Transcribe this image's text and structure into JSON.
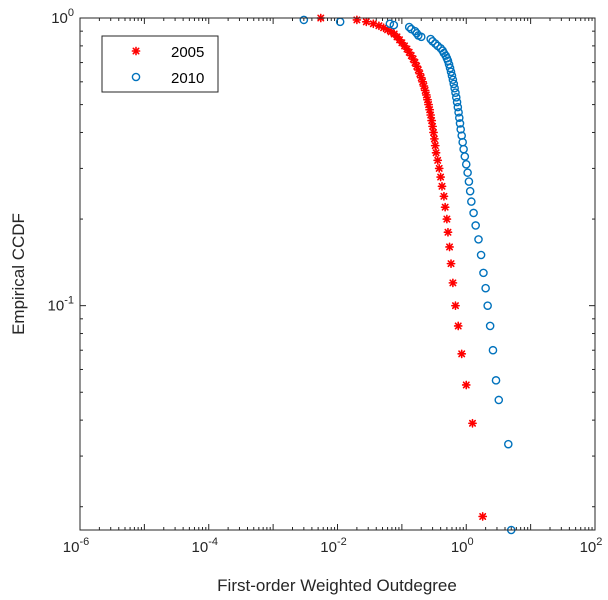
{
  "chart_data": {
    "type": "scatter",
    "xscale": "log",
    "yscale": "log",
    "xlim": [
      1e-06,
      100
    ],
    "ylim": [
      0.0166,
      1
    ],
    "xlabel": "First-order Weighted Outdegree",
    "ylabel": "Empirical CCDF",
    "x_ticks": [
      {
        "value": 1e-06,
        "base": "10",
        "exp": "-6"
      },
      {
        "value": 0.0001,
        "base": "10",
        "exp": "-4"
      },
      {
        "value": 0.01,
        "base": "10",
        "exp": "-2"
      },
      {
        "value": 1,
        "base": "10",
        "exp": "0"
      },
      {
        "value": 100,
        "base": "10",
        "exp": "2"
      }
    ],
    "y_ticks": [
      {
        "value": 0.1,
        "base": "10",
        "exp": "-1"
      },
      {
        "value": 1,
        "base": "10",
        "exp": "0"
      }
    ],
    "grid": false,
    "legend_position": "top-left",
    "series": [
      {
        "name": "2005",
        "marker": "asterisk",
        "color": "#ff0000",
        "points": [
          [
            0.0055,
            1.0
          ],
          [
            0.02,
            0.985
          ],
          [
            0.028,
            0.97
          ],
          [
            0.036,
            0.955
          ],
          [
            0.044,
            0.94
          ],
          [
            0.052,
            0.925
          ],
          [
            0.06,
            0.91
          ],
          [
            0.068,
            0.895
          ],
          [
            0.076,
            0.88
          ],
          [
            0.084,
            0.86
          ],
          [
            0.092,
            0.84
          ],
          [
            0.1,
            0.82
          ],
          [
            0.11,
            0.8
          ],
          [
            0.12,
            0.78
          ],
          [
            0.13,
            0.76
          ],
          [
            0.14,
            0.74
          ],
          [
            0.15,
            0.72
          ],
          [
            0.16,
            0.7
          ],
          [
            0.17,
            0.68
          ],
          [
            0.18,
            0.66
          ],
          [
            0.19,
            0.64
          ],
          [
            0.2,
            0.62
          ],
          [
            0.21,
            0.6
          ],
          [
            0.22,
            0.58
          ],
          [
            0.23,
            0.56
          ],
          [
            0.24,
            0.54
          ],
          [
            0.25,
            0.52
          ],
          [
            0.26,
            0.5
          ],
          [
            0.27,
            0.48
          ],
          [
            0.28,
            0.46
          ],
          [
            0.29,
            0.44
          ],
          [
            0.3,
            0.42
          ],
          [
            0.31,
            0.4
          ],
          [
            0.32,
            0.38
          ],
          [
            0.33,
            0.36
          ],
          [
            0.34,
            0.34
          ],
          [
            0.36,
            0.32
          ],
          [
            0.38,
            0.3
          ],
          [
            0.4,
            0.28
          ],
          [
            0.42,
            0.26
          ],
          [
            0.45,
            0.24
          ],
          [
            0.47,
            0.22
          ],
          [
            0.5,
            0.2
          ],
          [
            0.52,
            0.18
          ],
          [
            0.55,
            0.16
          ],
          [
            0.58,
            0.14
          ],
          [
            0.62,
            0.12
          ],
          [
            0.68,
            0.1
          ],
          [
            0.75,
            0.085
          ],
          [
            0.85,
            0.068
          ],
          [
            1.0,
            0.053
          ],
          [
            1.25,
            0.039
          ],
          [
            1.8,
            0.0185
          ]
        ]
      },
      {
        "name": "2010",
        "marker": "circle",
        "color": "#0072bd",
        "points": [
          [
            0.003,
            0.985
          ],
          [
            0.011,
            0.97
          ],
          [
            0.065,
            0.955
          ],
          [
            0.075,
            0.945
          ],
          [
            0.13,
            0.93
          ],
          [
            0.14,
            0.915
          ],
          [
            0.16,
            0.9
          ],
          [
            0.17,
            0.885
          ],
          [
            0.18,
            0.87
          ],
          [
            0.2,
            0.86
          ],
          [
            0.28,
            0.845
          ],
          [
            0.3,
            0.83
          ],
          [
            0.33,
            0.815
          ],
          [
            0.36,
            0.8
          ],
          [
            0.4,
            0.785
          ],
          [
            0.43,
            0.77
          ],
          [
            0.45,
            0.755
          ],
          [
            0.48,
            0.74
          ],
          [
            0.5,
            0.725
          ],
          [
            0.52,
            0.71
          ],
          [
            0.54,
            0.69
          ],
          [
            0.56,
            0.67
          ],
          [
            0.58,
            0.65
          ],
          [
            0.6,
            0.63
          ],
          [
            0.62,
            0.61
          ],
          [
            0.64,
            0.59
          ],
          [
            0.66,
            0.57
          ],
          [
            0.68,
            0.55
          ],
          [
            0.7,
            0.53
          ],
          [
            0.72,
            0.51
          ],
          [
            0.74,
            0.49
          ],
          [
            0.76,
            0.47
          ],
          [
            0.78,
            0.45
          ],
          [
            0.8,
            0.43
          ],
          [
            0.82,
            0.41
          ],
          [
            0.85,
            0.39
          ],
          [
            0.88,
            0.37
          ],
          [
            0.91,
            0.35
          ],
          [
            0.95,
            0.33
          ],
          [
            1.0,
            0.31
          ],
          [
            1.05,
            0.29
          ],
          [
            1.1,
            0.27
          ],
          [
            1.15,
            0.25
          ],
          [
            1.2,
            0.23
          ],
          [
            1.3,
            0.21
          ],
          [
            1.4,
            0.19
          ],
          [
            1.55,
            0.17
          ],
          [
            1.7,
            0.15
          ],
          [
            1.85,
            0.13
          ],
          [
            2.0,
            0.115
          ],
          [
            2.15,
            0.1
          ],
          [
            2.35,
            0.085
          ],
          [
            2.6,
            0.07
          ],
          [
            2.9,
            0.055
          ],
          [
            3.2,
            0.047
          ],
          [
            4.5,
            0.033
          ],
          [
            5.0,
            0.0166
          ]
        ]
      }
    ]
  }
}
